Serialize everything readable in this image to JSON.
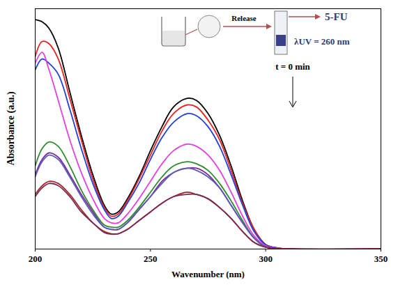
{
  "chart_data": {
    "type": "line",
    "x_label": "Wavenumber (nm)",
    "y_label": "Absorbance (a.u.)",
    "annotations": [
      "Release",
      "5-FU",
      "λUV = 260 nm",
      "t = 0 min"
    ],
    "x": [
      200,
      203,
      206,
      210,
      215,
      220,
      225,
      230,
      233,
      236,
      240,
      245,
      250,
      255,
      260,
      266,
      270,
      275,
      280,
      285,
      290,
      295,
      300,
      305,
      310,
      350
    ],
    "series": [
      {
        "color": "#000000",
        "values": [
          1.05,
          1.04,
          1.01,
          0.92,
          0.72,
          0.52,
          0.34,
          0.2,
          0.16,
          0.17,
          0.23,
          0.33,
          0.45,
          0.56,
          0.65,
          0.69,
          0.68,
          0.62,
          0.52,
          0.38,
          0.22,
          0.09,
          0.02,
          0.005,
          0,
          0
        ]
      },
      {
        "color": "#e8231f",
        "values": [
          0.88,
          0.95,
          0.94,
          0.87,
          0.69,
          0.5,
          0.32,
          0.19,
          0.15,
          0.16,
          0.22,
          0.32,
          0.43,
          0.54,
          0.62,
          0.66,
          0.65,
          0.59,
          0.5,
          0.36,
          0.21,
          0.09,
          0.02,
          0.005,
          0,
          0
        ]
      },
      {
        "color": "#1f3fe0",
        "values": [
          0.82,
          0.87,
          0.85,
          0.8,
          0.64,
          0.46,
          0.3,
          0.18,
          0.14,
          0.15,
          0.21,
          0.3,
          0.41,
          0.51,
          0.58,
          0.62,
          0.61,
          0.56,
          0.47,
          0.34,
          0.2,
          0.08,
          0.02,
          0.005,
          0,
          0
        ]
      },
      {
        "color": "#e83ee0",
        "values": [
          0.85,
          0.9,
          0.82,
          0.68,
          0.5,
          0.35,
          0.23,
          0.14,
          0.12,
          0.12,
          0.16,
          0.23,
          0.31,
          0.39,
          0.45,
          0.48,
          0.47,
          0.43,
          0.36,
          0.26,
          0.15,
          0.06,
          0.015,
          0.004,
          0,
          0
        ]
      },
      {
        "color": "#2e8b2e",
        "values": [
          0.38,
          0.46,
          0.49,
          0.47,
          0.38,
          0.27,
          0.18,
          0.11,
          0.1,
          0.1,
          0.13,
          0.19,
          0.26,
          0.33,
          0.38,
          0.4,
          0.39,
          0.36,
          0.3,
          0.22,
          0.13,
          0.05,
          0.01,
          0.003,
          0,
          0
        ]
      },
      {
        "color": "#7a2a9a",
        "values": [
          0.34,
          0.41,
          0.44,
          0.42,
          0.34,
          0.25,
          0.17,
          0.1,
          0.09,
          0.09,
          0.12,
          0.18,
          0.24,
          0.31,
          0.35,
          0.37,
          0.37,
          0.34,
          0.28,
          0.2,
          0.12,
          0.05,
          0.01,
          0.003,
          0,
          0
        ]
      },
      {
        "color": "#5a5ab8",
        "values": [
          0.33,
          0.4,
          0.43,
          0.41,
          0.33,
          0.24,
          0.16,
          0.1,
          0.09,
          0.09,
          0.12,
          0.18,
          0.24,
          0.3,
          0.35,
          0.37,
          0.36,
          0.33,
          0.28,
          0.2,
          0.12,
          0.05,
          0.01,
          0.003,
          0,
          0
        ]
      },
      {
        "color": "#a0282a",
        "values": [
          0.25,
          0.29,
          0.31,
          0.3,
          0.25,
          0.18,
          0.12,
          0.08,
          0.07,
          0.07,
          0.09,
          0.13,
          0.17,
          0.21,
          0.24,
          0.26,
          0.25,
          0.23,
          0.19,
          0.14,
          0.08,
          0.03,
          0.008,
          0.002,
          0,
          0
        ]
      },
      {
        "color": "#7a2a55",
        "values": [
          0.24,
          0.28,
          0.3,
          0.29,
          0.24,
          0.17,
          0.12,
          0.075,
          0.068,
          0.07,
          0.09,
          0.13,
          0.17,
          0.21,
          0.24,
          0.25,
          0.25,
          0.23,
          0.19,
          0.14,
          0.08,
          0.03,
          0.008,
          0.002,
          0,
          0
        ]
      }
    ],
    "xlim": [
      200,
      350
    ],
    "xticks": [
      200,
      250,
      300,
      350
    ],
    "ylim": [
      0,
      1.1
    ],
    "yticks": [],
    "tick_labels": "x",
    "grid": false
  }
}
